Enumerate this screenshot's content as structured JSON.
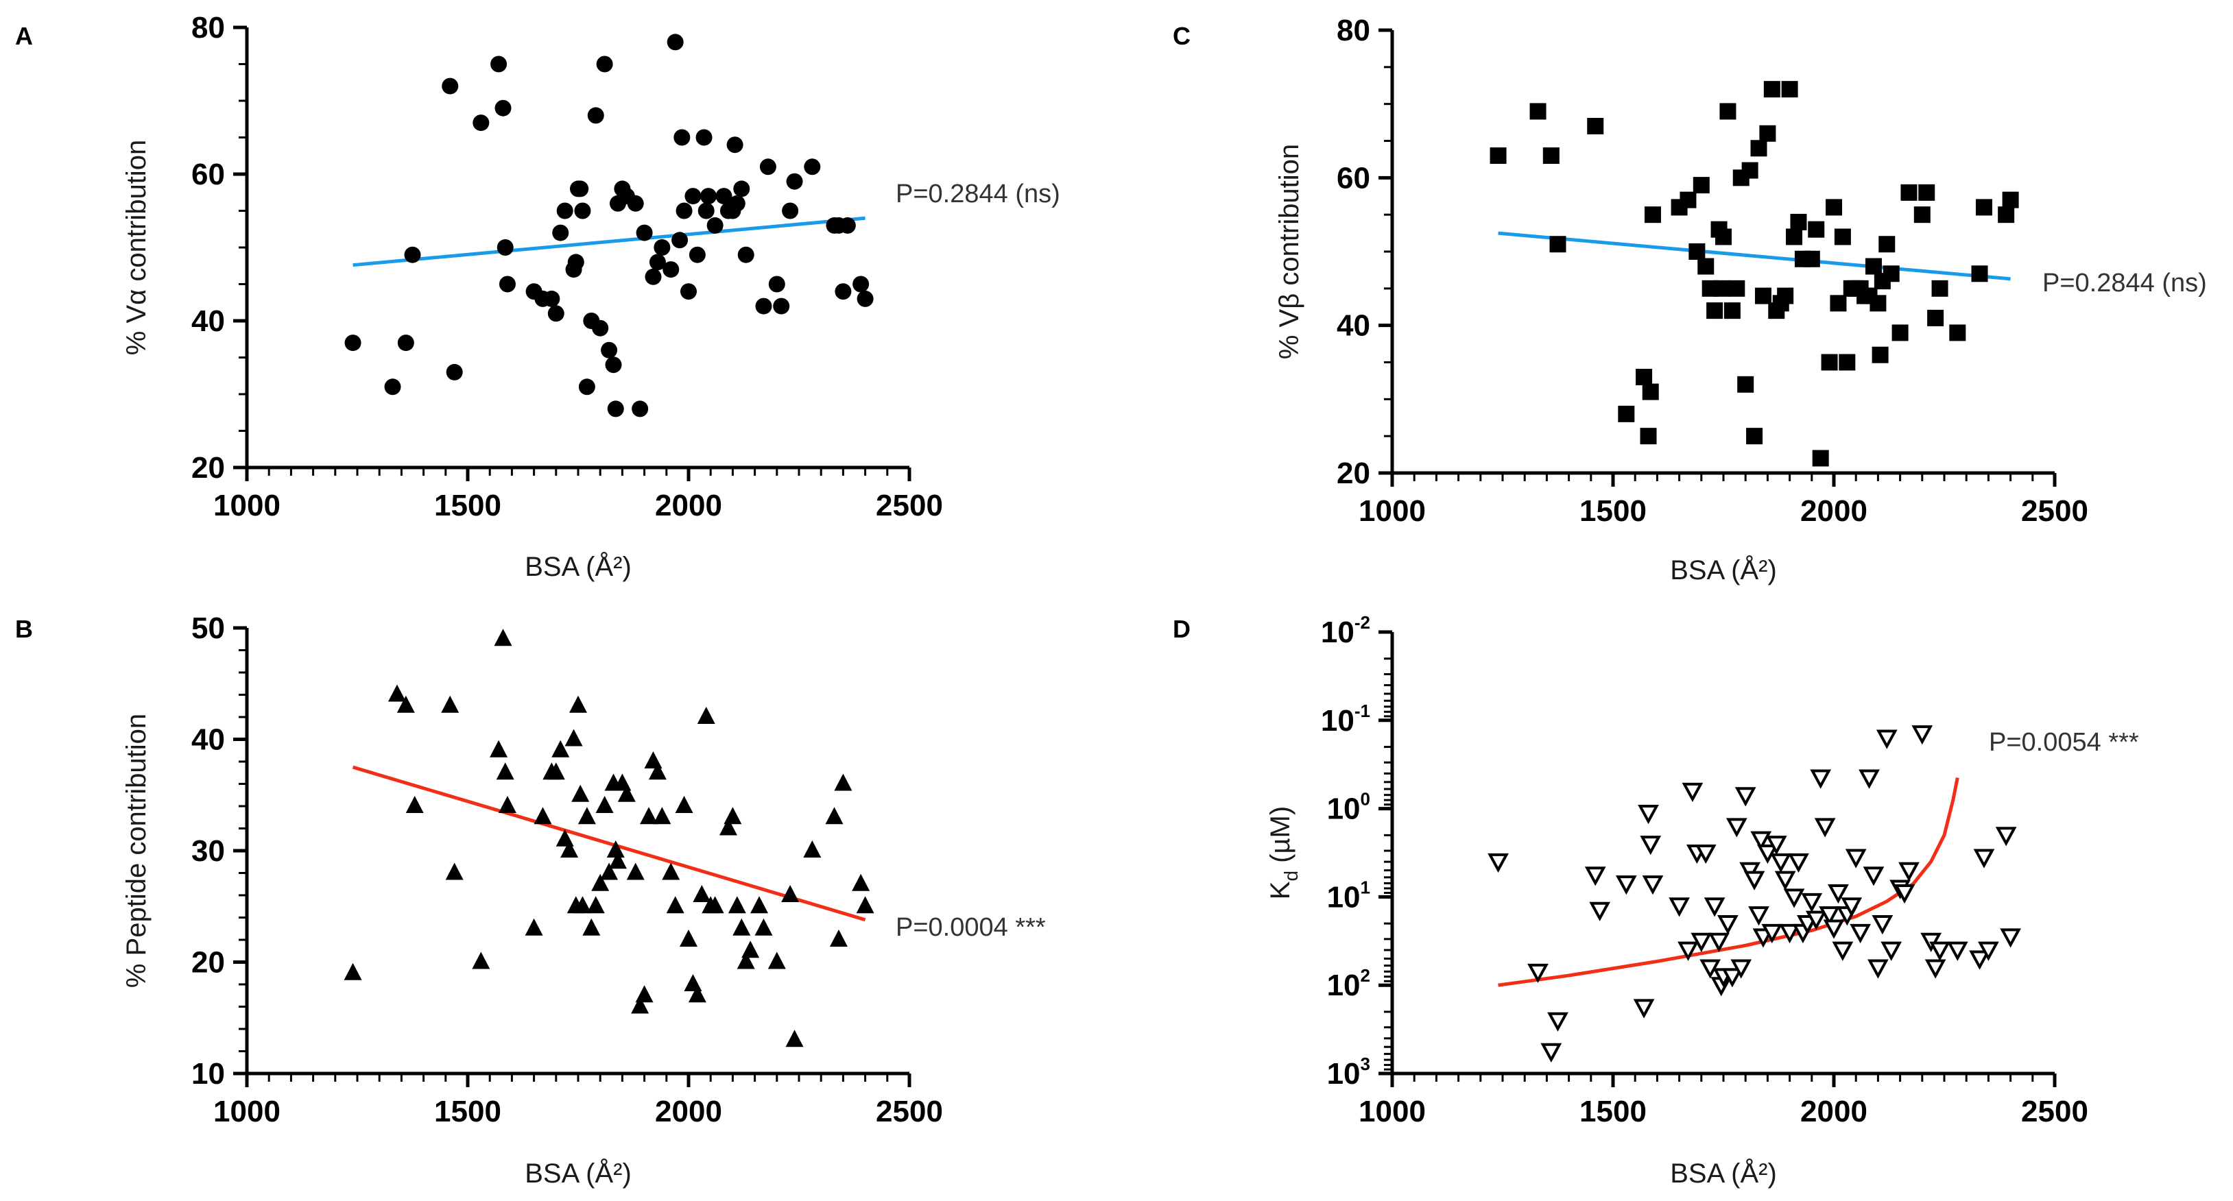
{
  "chart_data": [
    {
      "panel": "A",
      "type": "scatter",
      "marker": "circle",
      "xlabel": "BSA (Å²)",
      "ylabel": "% Vα contribution",
      "xlim": [
        1000,
        2500
      ],
      "ylim": [
        20,
        80
      ],
      "xticks": [
        1000,
        1500,
        2000,
        2500
      ],
      "yticks": [
        20,
        40,
        60,
        80
      ],
      "annotation": "P=0.2844 (ns)",
      "fit": {
        "color": "#1a9bea",
        "x": [
          1240,
          2400
        ],
        "y": [
          47.6,
          54.0
        ]
      },
      "x": [
        1240,
        1330,
        1360,
        1375,
        1460,
        1470,
        1530,
        1570,
        1580,
        1585,
        1590,
        1650,
        1670,
        1690,
        1700,
        1710,
        1720,
        1740,
        1745,
        1750,
        1755,
        1760,
        1770,
        1780,
        1790,
        1800,
        1810,
        1820,
        1830,
        1835,
        1840,
        1850,
        1860,
        1880,
        1890,
        1900,
        1920,
        1930,
        1940,
        1960,
        1970,
        1980,
        1985,
        1990,
        2000,
        2010,
        2020,
        2035,
        2040,
        2045,
        2060,
        2080,
        2090,
        2100,
        2105,
        2110,
        2120,
        2130,
        2170,
        2180,
        2200,
        2210,
        2230,
        2240,
        2280,
        2330,
        2340,
        2350,
        2360,
        2390,
        2400
      ],
      "y": [
        37,
        31,
        37,
        49,
        72,
        33,
        67,
        75,
        69,
        50,
        45,
        44,
        43,
        43,
        41,
        52,
        55,
        47,
        48,
        58,
        58,
        55,
        31,
        40,
        68,
        39,
        75,
        36,
        34,
        28,
        56,
        58,
        57,
        56,
        28,
        52,
        46,
        48,
        50,
        47,
        78,
        51,
        65,
        55,
        44,
        57,
        49,
        65,
        55,
        57,
        53,
        57,
        55,
        55,
        64,
        56,
        58,
        49,
        42,
        61,
        45,
        42,
        55,
        59,
        61,
        53,
        53,
        44,
        53,
        45,
        43
      ]
    },
    {
      "panel": "B",
      "type": "scatter",
      "marker": "triangle",
      "xlabel": "BSA (Å²)",
      "ylabel": "% Peptide contribution",
      "xlim": [
        1000,
        2500
      ],
      "ylim": [
        10,
        50
      ],
      "xticks": [
        1000,
        1500,
        2000,
        2500
      ],
      "yticks": [
        10,
        20,
        30,
        40,
        50
      ],
      "annotation": "P=0.0004 ***",
      "fit": {
        "color": "#f22e16",
        "x": [
          1240,
          2400
        ],
        "y": [
          37.5,
          23.8
        ]
      },
      "x": [
        1240,
        1340,
        1360,
        1380,
        1460,
        1470,
        1530,
        1570,
        1580,
        1585,
        1590,
        1650,
        1670,
        1690,
        1700,
        1710,
        1720,
        1730,
        1740,
        1745,
        1750,
        1755,
        1760,
        1770,
        1780,
        1790,
        1800,
        1810,
        1820,
        1830,
        1835,
        1840,
        1850,
        1860,
        1880,
        1890,
        1900,
        1910,
        1920,
        1930,
        1940,
        1960,
        1970,
        1990,
        2000,
        2010,
        2020,
        2030,
        2040,
        2050,
        2060,
        2090,
        2100,
        2110,
        2120,
        2130,
        2140,
        2160,
        2170,
        2200,
        2230,
        2240,
        2280,
        2330,
        2340,
        2350,
        2390,
        2400
      ],
      "y": [
        19,
        44,
        43,
        34,
        43,
        28,
        20,
        39,
        49,
        37,
        34,
        23,
        33,
        37,
        37,
        39,
        31,
        30,
        40,
        25,
        43,
        35,
        25,
        33,
        23,
        25,
        27,
        34,
        28,
        36,
        30,
        29,
        36,
        35,
        28,
        16,
        17,
        33,
        38,
        37,
        33,
        28,
        25,
        34,
        22,
        18,
        17,
        26,
        42,
        25,
        25,
        32,
        33,
        25,
        23,
        20,
        21,
        25,
        23,
        20,
        26,
        13,
        30,
        33,
        22,
        36,
        27,
        25
      ]
    },
    {
      "panel": "C",
      "type": "scatter",
      "marker": "square",
      "xlabel": "BSA (Å²)",
      "ylabel": "% Vβ contribution",
      "xlim": [
        1000,
        2500
      ],
      "ylim": [
        20,
        80
      ],
      "xticks": [
        1000,
        1500,
        2000,
        2500
      ],
      "yticks": [
        20,
        40,
        60,
        80
      ],
      "annotation": "P=0.2844 (ns)",
      "fit": {
        "color": "#1a9bea",
        "x": [
          1240,
          2400
        ],
        "y": [
          52.5,
          46.3
        ]
      },
      "x": [
        1240,
        1330,
        1360,
        1375,
        1460,
        1530,
        1570,
        1580,
        1585,
        1590,
        1650,
        1670,
        1690,
        1700,
        1710,
        1720,
        1730,
        1740,
        1745,
        1750,
        1760,
        1770,
        1780,
        1790,
        1800,
        1810,
        1820,
        1830,
        1840,
        1850,
        1860,
        1870,
        1880,
        1890,
        1900,
        1910,
        1920,
        1930,
        1950,
        1960,
        1970,
        1990,
        2000,
        2010,
        2020,
        2030,
        2040,
        2050,
        2060,
        2070,
        2080,
        2090,
        2100,
        2105,
        2110,
        2120,
        2130,
        2150,
        2170,
        2200,
        2210,
        2230,
        2240,
        2280,
        2330,
        2340,
        2390,
        2400
      ],
      "y": [
        63,
        69,
        63,
        51,
        67,
        28,
        33,
        25,
        31,
        55,
        56,
        57,
        50,
        59,
        48,
        45,
        42,
        53,
        45,
        52,
        69,
        42,
        45,
        60,
        32,
        61,
        25,
        64,
        44,
        66,
        72,
        42,
        43,
        44,
        72,
        52,
        54,
        49,
        49,
        53,
        22,
        35,
        56,
        43,
        52,
        35,
        45,
        45,
        45,
        44,
        44,
        48,
        43,
        36,
        46,
        51,
        47,
        39,
        58,
        55,
        58,
        41,
        45,
        39,
        47,
        56,
        55,
        57
      ]
    },
    {
      "panel": "D",
      "type": "scatter",
      "marker": "open-inverted-triangle",
      "xlabel": "BSA (Å²)",
      "ylabel": "Kd (µM)",
      "ylabel_main": "K",
      "ylabel_sub": "d",
      "ylabel_tail": " (µM)",
      "y_scale": "log, inverted (top = 10^-2, bottom = 10^3)",
      "xlim": [
        1000,
        2500
      ],
      "ylim": [
        -2,
        3
      ],
      "xticks": [
        1000,
        1500,
        2000,
        2500
      ],
      "yticks": [
        -2,
        -1,
        0,
        1,
        2,
        3
      ],
      "ytick_labels": [
        {
          "base": "10",
          "exp": "-2"
        },
        {
          "base": "10",
          "exp": "-1"
        },
        {
          "base": "10",
          "exp": "0"
        },
        {
          "base": "10",
          "exp": "1"
        },
        {
          "base": "10",
          "exp": "2"
        },
        {
          "base": "10",
          "exp": "3"
        }
      ],
      "annotation": "P=0.0054 ***",
      "fit": {
        "color": "#f22e16",
        "x": [
          1240,
          1400,
          1600,
          1800,
          1950,
          2050,
          2120,
          2180,
          2220,
          2250,
          2270,
          2280
        ],
        "y_log10": [
          2.0,
          1.89,
          1.73,
          1.55,
          1.38,
          1.22,
          1.05,
          0.85,
          0.6,
          0.3,
          -0.1,
          -0.35
        ]
      },
      "x": [
        1240,
        1330,
        1360,
        1375,
        1460,
        1470,
        1530,
        1570,
        1580,
        1585,
        1590,
        1650,
        1670,
        1680,
        1690,
        1700,
        1710,
        1720,
        1730,
        1740,
        1745,
        1750,
        1760,
        1770,
        1780,
        1790,
        1800,
        1810,
        1820,
        1830,
        1835,
        1840,
        1850,
        1860,
        1870,
        1880,
        1890,
        1900,
        1910,
        1920,
        1930,
        1940,
        1950,
        1960,
        1970,
        1980,
        1990,
        2000,
        2010,
        2020,
        2030,
        2040,
        2050,
        2060,
        2080,
        2090,
        2100,
        2110,
        2120,
        2130,
        2150,
        2160,
        2170,
        2200,
        2220,
        2230,
        2240,
        2280,
        2330,
        2340,
        2350,
        2390,
        2400
      ],
      "y_log10": [
        0.6,
        1.85,
        2.75,
        2.4,
        0.75,
        1.15,
        0.85,
        2.25,
        0.05,
        0.4,
        0.85,
        1.1,
        1.6,
        -0.2,
        0.5,
        1.5,
        0.5,
        1.8,
        1.1,
        1.5,
        2.0,
        1.9,
        1.3,
        1.9,
        0.2,
        1.8,
        -0.15,
        0.7,
        0.8,
        1.2,
        0.35,
        1.45,
        0.5,
        1.4,
        0.4,
        0.6,
        0.8,
        1.4,
        1.0,
        0.6,
        1.4,
        1.3,
        1.05,
        1.25,
        -0.35,
        0.2,
        1.2,
        1.35,
        0.95,
        1.6,
        1.2,
        1.1,
        0.55,
        1.4,
        -0.35,
        0.75,
        1.8,
        1.3,
        -0.8,
        1.6,
        0.9,
        0.95,
        0.7,
        -0.85,
        1.5,
        1.8,
        1.6,
        1.6,
        1.7,
        0.55,
        1.6,
        0.3,
        1.45
      ]
    }
  ],
  "panels": {
    "A": {
      "letter": "A"
    },
    "B": {
      "letter": "B"
    },
    "C": {
      "letter": "C"
    },
    "D": {
      "letter": "D"
    }
  }
}
